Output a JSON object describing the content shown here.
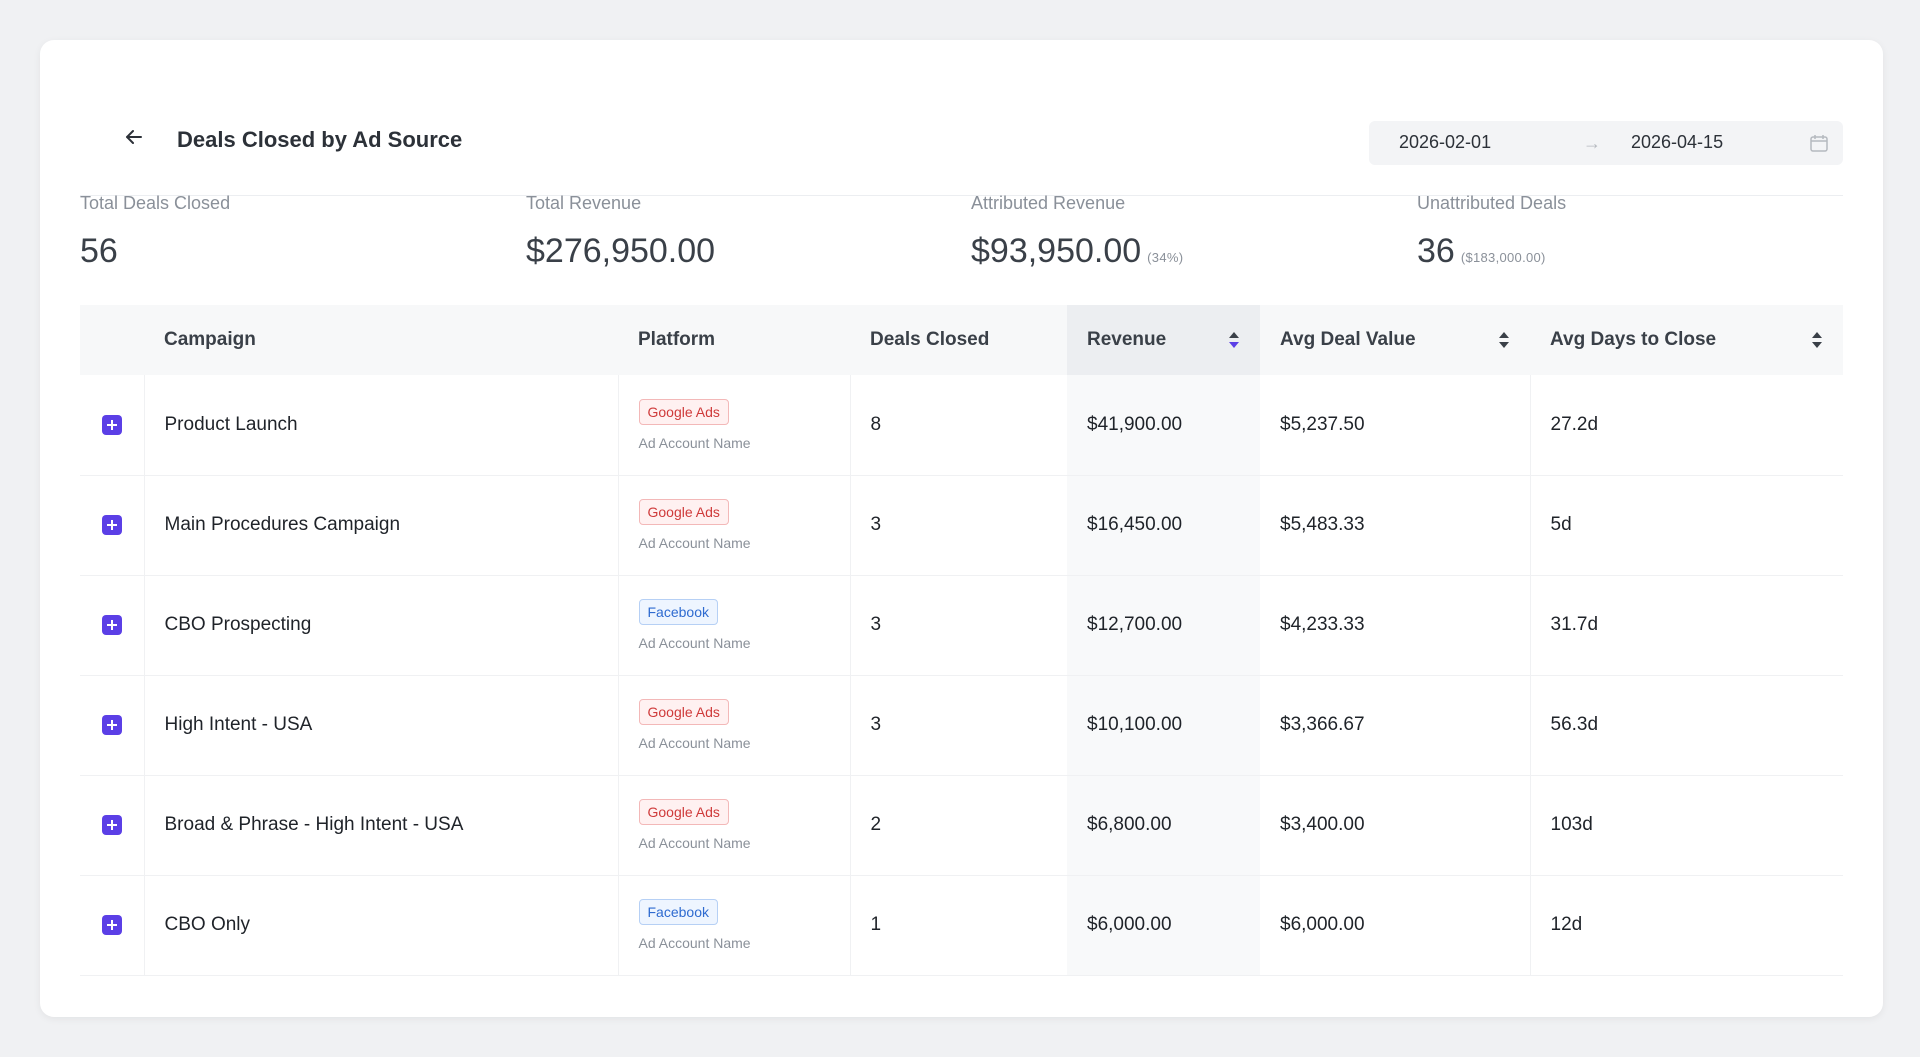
{
  "header": {
    "title": "Deals Closed by Ad Source",
    "date_start": "2026-02-01",
    "date_arrow": "→",
    "date_end": "2026-04-15"
  },
  "stats": {
    "total_deals": {
      "label": "Total Deals Closed",
      "value": "56"
    },
    "total_revenue": {
      "label": "Total Revenue",
      "value": "$276,950.00"
    },
    "attributed_revenue": {
      "label": "Attributed Revenue",
      "value": "$93,950.00",
      "sub": "(34%)"
    },
    "unattributed_deals": {
      "label": "Unattributed Deals",
      "value": "36",
      "sub": "($183,000.00)"
    }
  },
  "table": {
    "columns": {
      "campaign": "Campaign",
      "platform": "Platform",
      "deals": "Deals Closed",
      "revenue": "Revenue",
      "avg_value": "Avg Deal Value",
      "avg_days": "Avg Days to Close"
    },
    "rows": [
      {
        "campaign": "Product Launch",
        "platform": "Google Ads",
        "platform_type": "google",
        "account": "Ad Account Name",
        "deals": "8",
        "revenue": "$41,900.00",
        "avg_value": "$5,237.50",
        "avg_days": "27.2d"
      },
      {
        "campaign": "Main Procedures Campaign",
        "platform": "Google Ads",
        "platform_type": "google",
        "account": "Ad Account Name",
        "deals": "3",
        "revenue": "$16,450.00",
        "avg_value": "$5,483.33",
        "avg_days": "5d"
      },
      {
        "campaign": "CBO Prospecting",
        "platform": "Facebook",
        "platform_type": "facebook",
        "account": "Ad Account Name",
        "deals": "3",
        "revenue": "$12,700.00",
        "avg_value": "$4,233.33",
        "avg_days": "31.7d"
      },
      {
        "campaign": "High Intent - USA",
        "platform": "Google Ads",
        "platform_type": "google",
        "account": "Ad Account Name",
        "deals": "3",
        "revenue": "$10,100.00",
        "avg_value": "$3,366.67",
        "avg_days": "56.3d"
      },
      {
        "campaign": "Broad & Phrase - High Intent - USA",
        "platform": "Google Ads",
        "platform_type": "google",
        "account": "Ad Account Name",
        "deals": "2",
        "revenue": "$6,800.00",
        "avg_value": "$3,400.00",
        "avg_days": "103d"
      },
      {
        "campaign": "CBO Only",
        "platform": "Facebook",
        "platform_type": "facebook",
        "account": "Ad Account Name",
        "deals": "1",
        "revenue": "$6,000.00",
        "avg_value": "$6,000.00",
        "avg_days": "12d"
      }
    ]
  },
  "colors": {
    "accent": "#5b3fe6",
    "google_tag": "#cf3a3a",
    "facebook_tag": "#2f6bd0"
  }
}
